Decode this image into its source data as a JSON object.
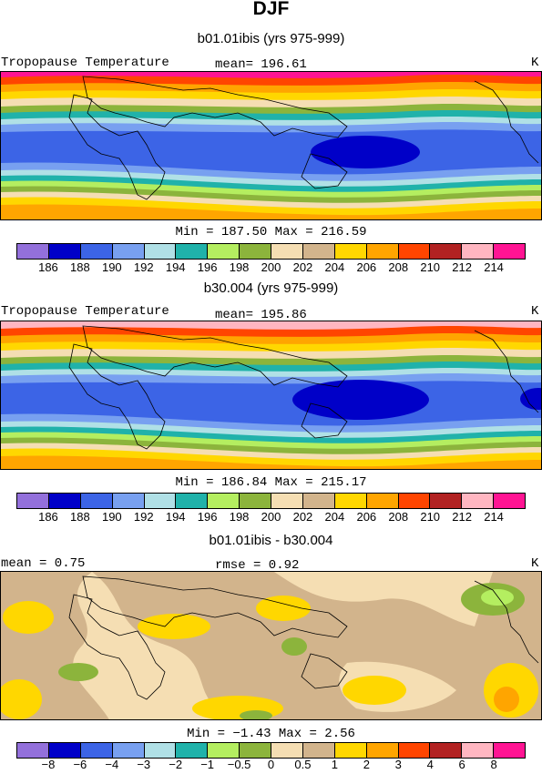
{
  "title": "DJF",
  "panels": [
    {
      "subtitle": "b01.01ibis (yrs 975-999)",
      "left_label": "Tropopause Temperature",
      "stat_label": "mean= 196.61",
      "units": "K",
      "minmax": "Min = 187.50 Max = 216.59",
      "colorbar_ticks": [
        "186",
        "188",
        "190",
        "192",
        "194",
        "196",
        "198",
        "200",
        "202",
        "204",
        "206",
        "208",
        "210",
        "212",
        "214"
      ],
      "colors": [
        "#9370db",
        "#0000c8",
        "#3c64e6",
        "#78a0f0",
        "#b0e0e6",
        "#20b2aa",
        "#b4ee60",
        "#8cb43c",
        "#f5deb3",
        "#d2b48c",
        "#ffd700",
        "#ffa500",
        "#ff4500",
        "#b22222",
        "#ffb6c1",
        "#ff1493"
      ]
    },
    {
      "subtitle": "b30.004 (yrs 975-999)",
      "left_label": "Tropopause Temperature",
      "stat_label": "mean= 195.86",
      "units": "K",
      "minmax": "Min = 186.84 Max = 215.17",
      "colorbar_ticks": [
        "186",
        "188",
        "190",
        "192",
        "194",
        "196",
        "198",
        "200",
        "202",
        "204",
        "206",
        "208",
        "210",
        "212",
        "214"
      ],
      "colors": [
        "#9370db",
        "#0000c8",
        "#3c64e6",
        "#78a0f0",
        "#b0e0e6",
        "#20b2aa",
        "#b4ee60",
        "#8cb43c",
        "#f5deb3",
        "#d2b48c",
        "#ffd700",
        "#ffa500",
        "#ff4500",
        "#b22222",
        "#ffb6c1",
        "#ff1493"
      ]
    },
    {
      "subtitle": "b01.01ibis - b30.004",
      "left_label": "mean = 0.75",
      "stat_label": "rmse = 0.92",
      "units": "K",
      "minmax": "Min = −1.43 Max = 2.56",
      "colorbar_ticks": [
        "−8",
        "−6",
        "−4",
        "−3",
        "−2",
        "−1",
        "−0.5",
        "0",
        "0.5",
        "1",
        "2",
        "3",
        "4",
        "6",
        "8"
      ],
      "colors": [
        "#9370db",
        "#0000c8",
        "#3c64e6",
        "#78a0f0",
        "#b0e0e6",
        "#20b2aa",
        "#b4ee60",
        "#8cb43c",
        "#f5deb3",
        "#d2b48c",
        "#ffd700",
        "#ffa500",
        "#ff4500",
        "#b22222",
        "#ffb6c1",
        "#ff1493"
      ]
    }
  ]
}
